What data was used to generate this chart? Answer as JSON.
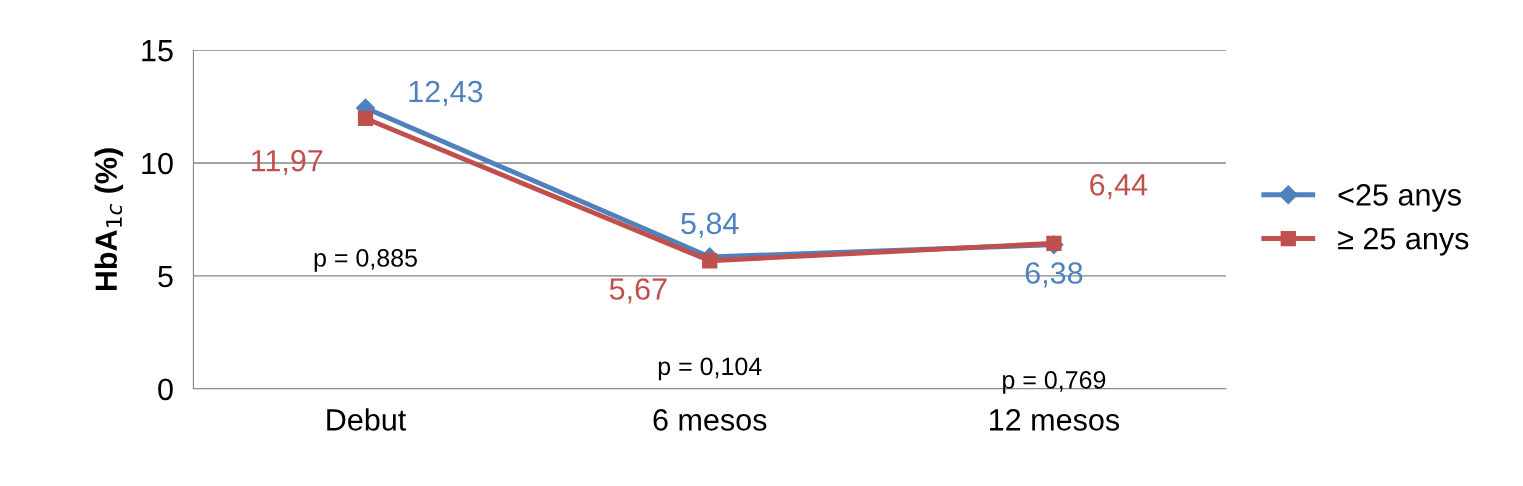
{
  "chart_data": {
    "type": "line",
    "ylabel": "HbA$_{1c}$ (%)",
    "categories": [
      "Debut",
      "6 mesos",
      "12 mesos"
    ],
    "series": [
      {
        "name": "<25 anys",
        "color": "#4f81bd",
        "marker": "diamond",
        "values": [
          12.43,
          5.84,
          6.38
        ],
        "value_labels": [
          "12,43",
          "5,84",
          "6,38"
        ]
      },
      {
        "name": "≥ 25 anys",
        "color": "#c0504d",
        "marker": "square",
        "values": [
          11.97,
          5.67,
          6.44
        ],
        "value_labels": [
          "11,97",
          "5,67",
          "6,44"
        ]
      }
    ],
    "ylim": [
      0,
      15
    ],
    "yticks": [
      0,
      5,
      10,
      15
    ],
    "grid": "y",
    "legend": "right",
    "line_style": "solid",
    "annotations": [
      "p = 0,885",
      "p = 0,104",
      "p = 0,769"
    ]
  }
}
